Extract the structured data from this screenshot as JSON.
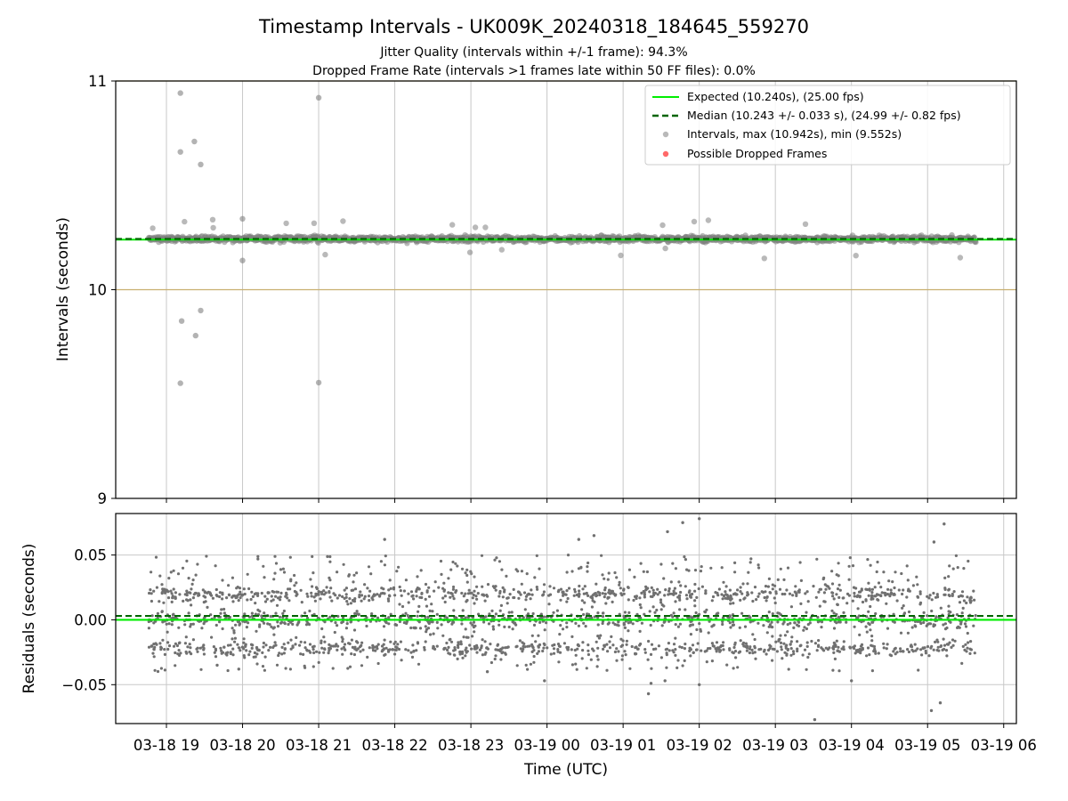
{
  "title": "Timestamp Intervals - UK009K_20240318_184645_559270",
  "subtitle_lines": [
    "Jitter Quality (intervals within +/-1 frame): 94.3%",
    "Dropped Frame Rate (intervals >1 frames late within 50 FF files): 0.0%"
  ],
  "colors": {
    "expected": "#00ee00",
    "median": "#006400",
    "intervals": "#808080",
    "dropped": "#ff4444",
    "bounds": "#c8b070",
    "grid": "#c8c8c8"
  },
  "chart_data": [
    {
      "type": "scatter",
      "panel": "intervals",
      "xlabel": "",
      "ylabel": "Intervals (seconds)",
      "x_range": [
        "2024-03-18 18:20",
        "2024-03-19 06:10"
      ],
      "ylim": [
        9,
        11
      ],
      "yticks": [
        9,
        10,
        11
      ],
      "grid": true,
      "legend_position": "top-right",
      "reference_lines": [
        {
          "name": "Expected (10.240s), (25.00 fps)",
          "y": 10.24,
          "style": "solid"
        },
        {
          "name": "Median (10.243 +/- 0.033 s), (24.99 +/- 0.82 fps)",
          "y": 10.243,
          "style": "dashed"
        }
      ],
      "bound_lines": [
        10.0,
        11.0
      ],
      "legend": [
        {
          "label": "Expected (10.240s), (25.00 fps)",
          "marker": "line"
        },
        {
          "label": "Median (10.243 +/- 0.033 s), (24.99 +/- 0.82 fps)",
          "marker": "dashed-line"
        },
        {
          "label": "Intervals, max (10.942s), min (9.552s)",
          "marker": "dot"
        },
        {
          "label": "Possible Dropped Frames",
          "marker": "dot"
        }
      ],
      "series": [
        {
          "name": "Intervals, max (10.942s), min (9.552s)",
          "start": "2024-03-18 18:46",
          "end": "2024-03-19 05:38",
          "median": 10.243,
          "spread": 0.033,
          "outliers": [
            {
              "x": "2024-03-18 19:11",
              "y": 10.942
            },
            {
              "x": "2024-03-18 19:11",
              "y": 10.66
            },
            {
              "x": "2024-03-18 19:22",
              "y": 10.71
            },
            {
              "x": "2024-03-18 19:27",
              "y": 10.6
            },
            {
              "x": "2024-03-18 19:12",
              "y": 9.85
            },
            {
              "x": "2024-03-18 19:23",
              "y": 9.78
            },
            {
              "x": "2024-03-18 19:27",
              "y": 9.9
            },
            {
              "x": "2024-03-18 19:11",
              "y": 9.552
            },
            {
              "x": "2024-03-18 20:00",
              "y": 10.34
            },
            {
              "x": "2024-03-18 20:00",
              "y": 10.14
            },
            {
              "x": "2024-03-18 21:00",
              "y": 10.92
            },
            {
              "x": "2024-03-18 21:00",
              "y": 9.555
            }
          ]
        },
        {
          "name": "Possible Dropped Frames",
          "points": []
        }
      ]
    },
    {
      "type": "scatter",
      "panel": "residuals",
      "xlabel": "Time (UTC)",
      "ylabel": "Residuals (seconds)",
      "x_range": [
        "2024-03-18 18:20",
        "2024-03-19 06:10"
      ],
      "ylim": [
        -0.08,
        0.082
      ],
      "yticks": [
        {
          "value": 0.05,
          "label": "0.05"
        },
        {
          "value": 0.0,
          "label": "0.00"
        },
        {
          "value": -0.05,
          "label": "−0.05"
        }
      ],
      "xticks": [
        {
          "x": "2024-03-18 19:00",
          "label": "03-18 19"
        },
        {
          "x": "2024-03-18 20:00",
          "label": "03-18 20"
        },
        {
          "x": "2024-03-18 21:00",
          "label": "03-18 21"
        },
        {
          "x": "2024-03-18 22:00",
          "label": "03-18 22"
        },
        {
          "x": "2024-03-18 23:00",
          "label": "03-18 23"
        },
        {
          "x": "2024-03-19 00:00",
          "label": "03-19 00"
        },
        {
          "x": "2024-03-19 01:00",
          "label": "03-19 01"
        },
        {
          "x": "2024-03-19 02:00",
          "label": "03-19 02"
        },
        {
          "x": "2024-03-19 03:00",
          "label": "03-19 03"
        },
        {
          "x": "2024-03-19 04:00",
          "label": "03-19 04"
        },
        {
          "x": "2024-03-19 05:00",
          "label": "03-19 05"
        },
        {
          "x": "2024-03-19 06:00",
          "label": "03-19 06"
        }
      ],
      "grid": true,
      "reference_lines": [
        {
          "y": 0.0,
          "style": "solid"
        },
        {
          "y": 0.003,
          "style": "dashed"
        }
      ],
      "residual_points": {
        "start": "2024-03-18 18:46",
        "end": "2024-03-19 05:38",
        "bands": [
          -0.022,
          0.0,
          0.02
        ],
        "range": [
          -0.04,
          0.05
        ],
        "outliers": [
          {
            "x": "2024-03-19 02:00",
            "y": 0.078
          },
          {
            "x": "2024-03-19 05:13",
            "y": 0.074
          },
          {
            "x": "2024-03-19 01:47",
            "y": 0.075
          },
          {
            "x": "2024-03-19 01:35",
            "y": 0.068
          },
          {
            "x": "2024-03-19 00:37",
            "y": 0.065
          },
          {
            "x": "2024-03-18 21:52",
            "y": 0.062
          },
          {
            "x": "2024-03-19 05:05",
            "y": 0.06
          },
          {
            "x": "2024-03-19 00:25",
            "y": 0.062
          },
          {
            "x": "2024-03-19 03:31",
            "y": -0.077
          },
          {
            "x": "2024-03-19 05:03",
            "y": -0.07
          },
          {
            "x": "2024-03-19 05:10",
            "y": -0.064
          },
          {
            "x": "2024-03-19 01:20",
            "y": -0.057
          },
          {
            "x": "2024-03-19 02:00",
            "y": -0.05
          },
          {
            "x": "2024-03-19 01:22",
            "y": -0.049
          },
          {
            "x": "2024-03-19 01:33",
            "y": -0.047
          },
          {
            "x": "2024-03-18 23:58",
            "y": -0.047
          },
          {
            "x": "2024-03-19 04:00",
            "y": -0.047
          },
          {
            "x": "2024-03-18 23:13",
            "y": -0.04
          },
          {
            "x": "2024-03-18 19:57",
            "y": -0.038
          },
          {
            "x": "2024-03-18 19:40",
            "y": -0.035
          }
        ]
      }
    }
  ]
}
